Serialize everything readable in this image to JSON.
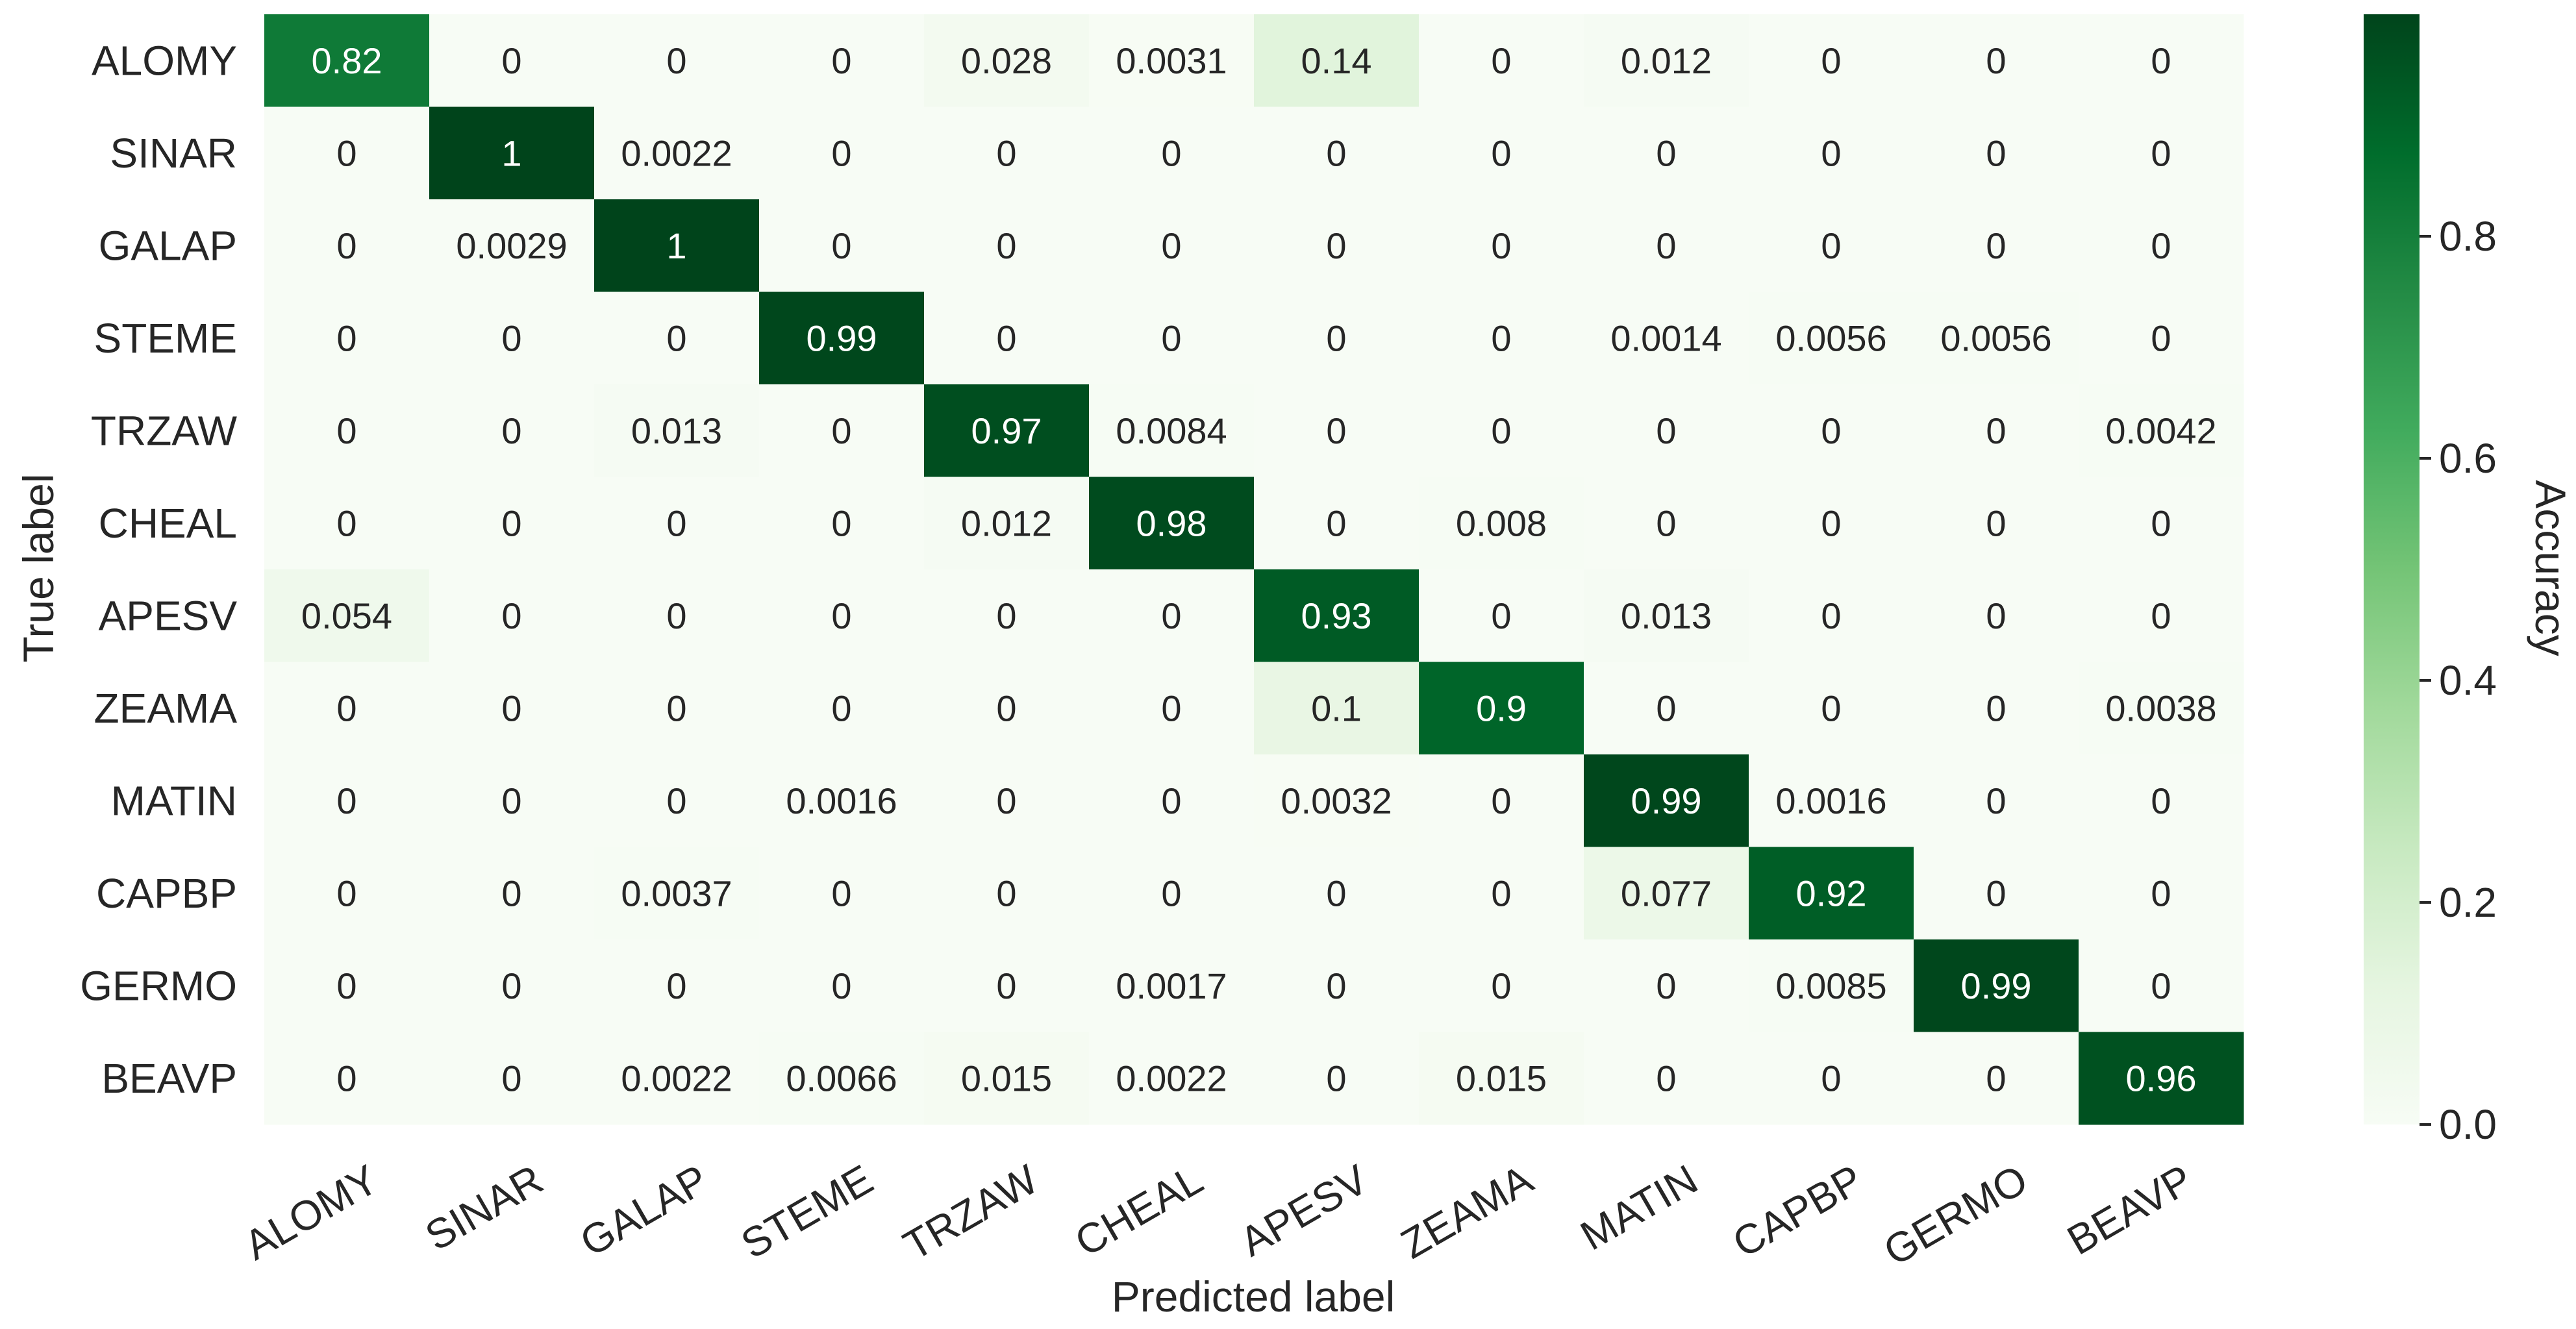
{
  "chart_data": {
    "type": "heatmap",
    "title": "",
    "xlabel": "Predicted label",
    "ylabel": "True label",
    "x_categories": [
      "ALOMY",
      "SINAR",
      "GALAP",
      "STEME",
      "TRZAW",
      "CHEAL",
      "APESV",
      "ZEAMA",
      "MATIN",
      "CAPBP",
      "GERMO",
      "BEAVP"
    ],
    "y_categories": [
      "ALOMY",
      "SINAR",
      "GALAP",
      "STEME",
      "TRZAW",
      "CHEAL",
      "APESV",
      "ZEAMA",
      "MATIN",
      "CAPBP",
      "GERMO",
      "BEAVP"
    ],
    "values": [
      [
        0.82,
        0,
        0,
        0,
        0.028,
        0.0031,
        0.14,
        0,
        0.012,
        0,
        0,
        0
      ],
      [
        0,
        1,
        0.0022,
        0,
        0,
        0,
        0,
        0,
        0,
        0,
        0,
        0
      ],
      [
        0,
        0.0029,
        1,
        0,
        0,
        0,
        0,
        0,
        0,
        0,
        0,
        0
      ],
      [
        0,
        0,
        0,
        0.99,
        0,
        0,
        0,
        0,
        0.0014,
        0.0056,
        0.0056,
        0
      ],
      [
        0,
        0,
        0.013,
        0,
        0.97,
        0.0084,
        0,
        0,
        0,
        0,
        0,
        0.0042
      ],
      [
        0,
        0,
        0,
        0,
        0.012,
        0.98,
        0,
        0.008,
        0,
        0,
        0,
        0
      ],
      [
        0.054,
        0,
        0,
        0,
        0,
        0,
        0.93,
        0,
        0.013,
        0,
        0,
        0
      ],
      [
        0,
        0,
        0,
        0,
        0,
        0,
        0.1,
        0.9,
        0,
        0,
        0,
        0.0038
      ],
      [
        0,
        0,
        0,
        0.0016,
        0,
        0,
        0.0032,
        0,
        0.99,
        0.0016,
        0,
        0
      ],
      [
        0,
        0,
        0.0037,
        0,
        0,
        0,
        0,
        0,
        0.077,
        0.92,
        0,
        0
      ],
      [
        0,
        0,
        0,
        0,
        0,
        0.0017,
        0,
        0,
        0,
        0.0085,
        0.99,
        0
      ],
      [
        0,
        0,
        0.0022,
        0.0066,
        0.015,
        0.0022,
        0,
        0.015,
        0,
        0,
        0,
        0.96
      ]
    ],
    "colormap": "Greens",
    "colorbar": {
      "label": "Accuracy",
      "range": [
        0,
        1
      ],
      "ticks": [
        0.0,
        0.2,
        0.4,
        0.6,
        0.8
      ],
      "tick_labels": [
        "0.0",
        "0.2",
        "0.4",
        "0.6",
        "0.8"
      ]
    },
    "grid": false,
    "legend": "colorbar right"
  }
}
